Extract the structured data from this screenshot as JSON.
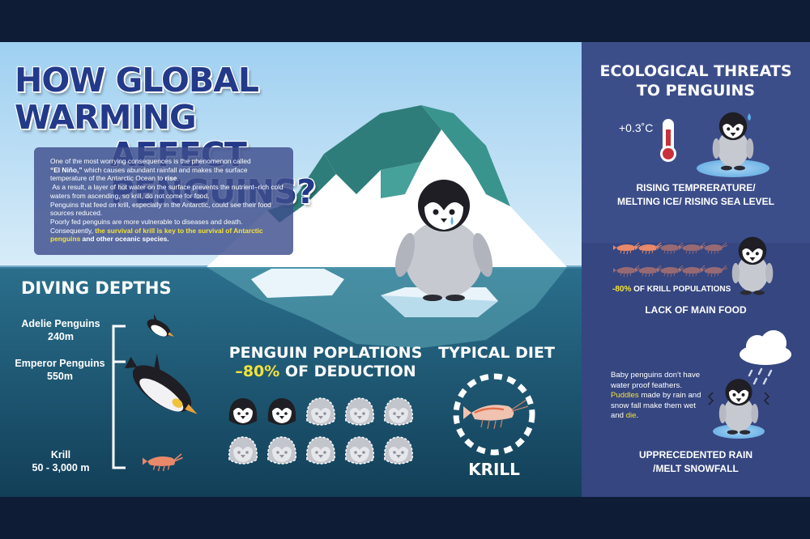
{
  "title": {
    "line1": "HOW GLOBAL WARMING",
    "line2": "AFFECT PENGUINS?"
  },
  "intro": {
    "p1_pre": "One of the most worrying consequences is the phenomenon called",
    "p1_el_nino": "“El Niño,”",
    "p1_mid": " which causes abundant rainfall and makes the surface temperature of the Antarctic Ocean to ",
    "p1_rise": "rise",
    "p1_end": ".",
    "p2": "As a result, a layer of hot water on the surface prevents the nutrient–rich cold waters from ascending, so  krill, do not come for food.",
    "p3": "Penguins that feed on krill, especially in the Antarctic, could see their food sources reduced.",
    "p4": "Poorly fed penguins are more vulnerable to diseases and death.",
    "p5_pre": "Consequently, ",
    "p5_hl": "the survival of krill is key to the survival of Antarctic penguins",
    "p5_end": " and other oceanic species."
  },
  "diving": {
    "heading": "DIVING DEPTHS",
    "adelie_name": "Adelie Penguins",
    "adelie_depth": "240m",
    "emperor_name": "Emperor Penguins",
    "emperor_depth": "550m",
    "krill_name": "Krill",
    "krill_depth": "50 - 3,000 m"
  },
  "populations": {
    "heading_line1": "PENGUIN POPLATIONS",
    "heading_pct": "–80%",
    "heading_rest": " OF DEDUCTION",
    "total_icons": 10,
    "remaining_icons": 2
  },
  "diet": {
    "heading": "TYPICAL DIET",
    "item": "KRILL"
  },
  "threats": {
    "heading_line1": "ECOLOGICAL THREATS",
    "heading_line2": "TO PENGUINS",
    "temp_value": "+0.3˚C",
    "t1_line1": "RISING TEMPRERATURE/",
    "t1_line2": "MELTING ICE/ RISING SEA LEVEL",
    "krill_pct": "-80%",
    "krill_rest": " OF KRILL POPULATIONS",
    "t2": "LACK OF MAIN FOOD",
    "rain_pre": "Baby penguins don't have water proof feathers. ",
    "rain_puddles": "Puddles",
    "rain_mid": " made by rain and snow fall make them wet and ",
    "rain_die": "die",
    "rain_end": ".",
    "t3_line1": "UPPRECEDENTED RAIN",
    "t3_line2": "/MELT SNOWFALL"
  },
  "colors": {
    "page_bg": "#0f1c35",
    "sky_top": "#a9d5f2",
    "ocean": "#1f5f7d",
    "side_panel": "#3c4e8a",
    "title_blue": "#233a8a",
    "highlight_yellow": "#f4e23a",
    "krill_orange": "#e8896a"
  }
}
